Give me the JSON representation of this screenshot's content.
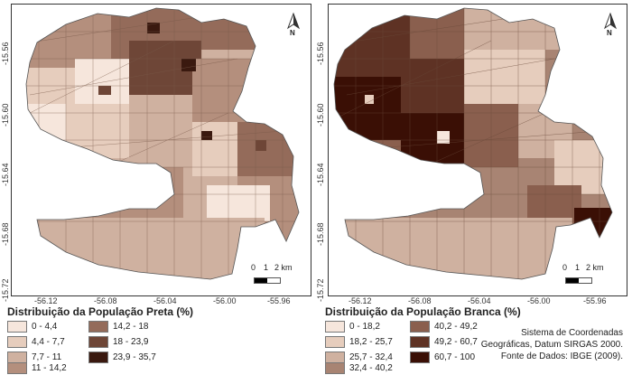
{
  "maps": [
    {
      "legend_title": "Distribuição da População Preta (%)",
      "classes": [
        {
          "label": "0 - 4,4",
          "color": "#f6e6dc"
        },
        {
          "label": "4,4 - 7,7",
          "color": "#e6cdbd"
        },
        {
          "label": "7,7 - 11",
          "color": "#cfb1a0"
        },
        {
          "label": "11 - 14,2",
          "color": "#b48f7d"
        },
        {
          "label": "14,2 - 18",
          "color": "#946b5a"
        },
        {
          "label": "18 - 23,9",
          "color": "#6e4637"
        },
        {
          "label": "23,9 - 35,7",
          "color": "#3a190f"
        }
      ],
      "lat_ticks": [
        "-15.56",
        "-15.60",
        "-15.64",
        "-15.68",
        "-15.72"
      ],
      "lon_ticks": [
        "-56.12",
        "-56.08",
        "-56.04",
        "-56.00",
        "-55.96"
      ],
      "scale_labels": [
        "0",
        "1",
        "2 km"
      ],
      "north_label": "N"
    },
    {
      "legend_title": "Distribuição da População Branca (%)",
      "classes": [
        {
          "label": "0 - 18,2",
          "color": "#f6e6dc"
        },
        {
          "label": "18,2 - 25,7",
          "color": "#e6cdbd"
        },
        {
          "label": "25,7 - 32,4",
          "color": "#cfb1a0"
        },
        {
          "label": "32,4 - 40,2",
          "color": "#a88473"
        },
        {
          "label": "40,2 - 49,2",
          "color": "#8a5f4e"
        },
        {
          "label": "49,2 - 60,7",
          "color": "#5e3224"
        },
        {
          "label": "60,7 - 100",
          "color": "#3a0f05"
        }
      ],
      "lat_ticks": [
        "-15.56",
        "-15.60",
        "-15.64",
        "-15.68",
        "-15.72"
      ],
      "lon_ticks": [
        "-56.12",
        "-56.08",
        "-56.04",
        "-56.00",
        "-55.96"
      ],
      "scale_labels": [
        "0",
        "1",
        "2 km"
      ],
      "north_label": "N"
    }
  ],
  "credits": [
    "Sistema de Coordenadas",
    "Geográficas, Datum SIRGAS 2000.",
    "Fonte de Dados: IBGE (2009)."
  ]
}
